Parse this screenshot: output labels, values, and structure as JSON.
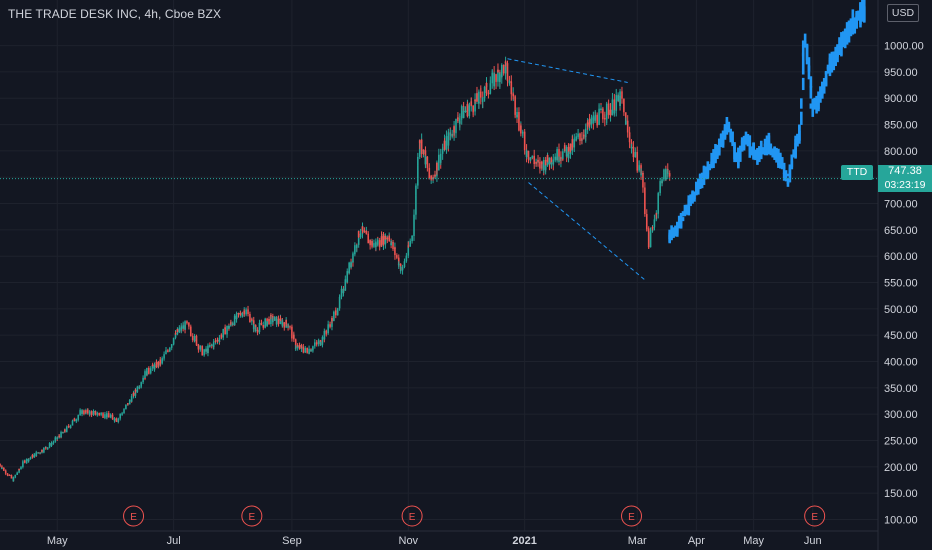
{
  "header": {
    "title": "THE TRADE DESK INC, 4h, Cboe BZX",
    "currency": "USD"
  },
  "price_label": {
    "ticker": "TTD",
    "price": "747.38",
    "countdown": "03:23:19"
  },
  "colors": {
    "background": "#131722",
    "grid": "#1e222d",
    "up": "#26a69a",
    "down": "#ef5350",
    "projection": "#2196f3",
    "pattern_line": "#2196f3",
    "earnings": "#ef5350",
    "text": "#d1d4dc"
  },
  "chart_data": {
    "type": "candlestick",
    "y_axis": {
      "side": "right",
      "ticks": [
        "100.00",
        "150.00",
        "200.00",
        "250.00",
        "300.00",
        "350.00",
        "400.00",
        "450.00",
        "500.00",
        "550.00",
        "600.00",
        "650.00",
        "700.00",
        "750.00",
        "800.00",
        "850.00",
        "900.00",
        "950.00",
        "1000.00"
      ],
      "range": [
        80,
        1060
      ]
    },
    "x_axis": {
      "ticks": [
        "May",
        "Jul",
        "Sep",
        "Nov",
        "2021",
        "Mar",
        "Apr",
        "May",
        "Jun"
      ]
    },
    "grid": true,
    "earnings_markers": {
      "label": "E",
      "months": [
        "Aug 2020",
        "Nov 2020",
        "Feb 2021",
        "May 2021"
      ]
    },
    "price_path": [
      [
        "2020-04-01",
        205
      ],
      [
        "2020-04-08",
        175
      ],
      [
        "2020-04-14",
        210
      ],
      [
        "2020-04-27",
        240
      ],
      [
        "2020-05-06",
        270
      ],
      [
        "2020-05-14",
        305
      ],
      [
        "2020-05-25",
        300
      ],
      [
        "2020-06-02",
        290
      ],
      [
        "2020-06-10",
        335
      ],
      [
        "2020-06-17",
        380
      ],
      [
        "2020-06-25",
        400
      ],
      [
        "2020-07-03",
        455
      ],
      [
        "2020-07-08",
        470
      ],
      [
        "2020-07-17",
        415
      ],
      [
        "2020-07-24",
        440
      ],
      [
        "2020-07-31",
        470
      ],
      [
        "2020-08-08",
        500
      ],
      [
        "2020-08-13",
        460
      ],
      [
        "2020-08-21",
        480
      ],
      [
        "2020-08-31",
        470
      ],
      [
        "2020-09-03",
        430
      ],
      [
        "2020-09-09",
        420
      ],
      [
        "2020-09-17",
        440
      ],
      [
        "2020-09-25",
        500
      ],
      [
        "2020-09-30",
        560
      ],
      [
        "2020-10-07",
        650
      ],
      [
        "2020-10-14",
        620
      ],
      [
        "2020-10-22",
        640
      ],
      [
        "2020-10-29",
        570
      ],
      [
        "2020-11-04",
        650
      ],
      [
        "2020-11-07",
        830
      ],
      [
        "2020-11-13",
        740
      ],
      [
        "2020-11-19",
        800
      ],
      [
        "2020-11-29",
        870
      ],
      [
        "2020-12-09",
        900
      ],
      [
        "2020-12-16",
        935
      ],
      [
        "2020-12-22",
        960
      ],
      [
        "2020-12-25",
        920
      ],
      [
        "2020-12-29",
        860
      ],
      [
        "2021-01-02",
        800
      ],
      [
        "2021-01-09",
        770
      ],
      [
        "2021-01-17",
        790
      ],
      [
        "2021-01-24",
        800
      ],
      [
        "2021-01-31",
        830
      ],
      [
        "2021-02-07",
        860
      ],
      [
        "2021-02-15",
        880
      ],
      [
        "2021-02-21",
        900
      ],
      [
        "2021-02-24",
        840
      ],
      [
        "2021-02-28",
        790
      ],
      [
        "2021-03-04",
        750
      ],
      [
        "2021-03-07",
        620
      ],
      [
        "2021-03-11",
        680
      ],
      [
        "2021-03-14",
        750
      ],
      [
        "2021-03-18",
        760
      ]
    ],
    "projection_path": [
      [
        "2021-03-18",
        640
      ],
      [
        "2021-03-22",
        650
      ],
      [
        "2021-03-29",
        700
      ],
      [
        "2021-04-03",
        740
      ],
      [
        "2021-04-10",
        780
      ],
      [
        "2021-04-15",
        820
      ],
      [
        "2021-04-18",
        850
      ],
      [
        "2021-04-23",
        780
      ],
      [
        "2021-04-27",
        820
      ],
      [
        "2021-05-03",
        790
      ],
      [
        "2021-05-09",
        815
      ],
      [
        "2021-05-12",
        795
      ],
      [
        "2021-05-16",
        780
      ],
      [
        "2021-05-19",
        740
      ],
      [
        "2021-05-23",
        800
      ],
      [
        "2021-05-26",
        840
      ],
      [
        "2021-05-28",
        1020
      ],
      [
        "2021-05-30",
        970
      ],
      [
        "2021-06-01",
        880
      ],
      [
        "2021-06-05",
        900
      ],
      [
        "2021-06-10",
        960
      ],
      [
        "2021-06-15",
        990
      ],
      [
        "2021-06-22",
        1040
      ],
      [
        "2021-06-29",
        1070
      ]
    ],
    "pattern_lines": [
      {
        "from": [
          "2020-12-23",
          975
        ],
        "to": [
          "2021-02-24",
          930
        ]
      },
      {
        "from": [
          "2021-01-03",
          740
        ],
        "to": [
          "2021-03-05",
          555
        ]
      }
    ]
  }
}
